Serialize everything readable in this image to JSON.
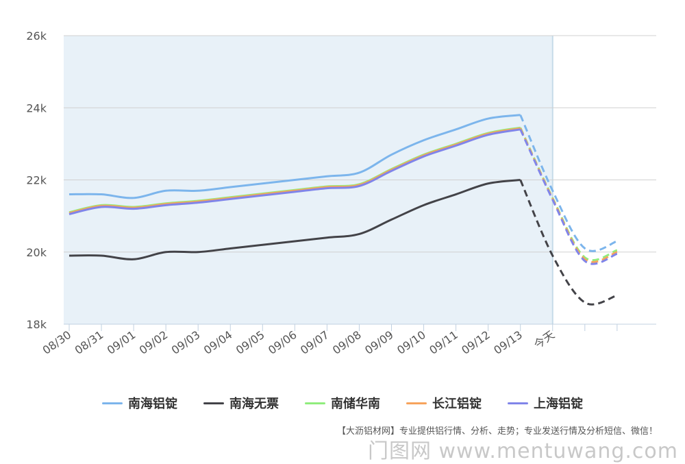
{
  "chart_data": {
    "type": "line",
    "categories": [
      "08/30",
      "08/31",
      "09/01",
      "09/02",
      "09/03",
      "09/04",
      "09/05",
      "09/06",
      "09/07",
      "09/08",
      "09/09",
      "09/10",
      "09/11",
      "09/12",
      "09/13",
      "今天",
      "",
      ""
    ],
    "y_ticks": [
      "18k",
      "20k",
      "22k",
      "24k",
      "26k"
    ],
    "ylim": [
      18000,
      26000
    ],
    "grid": true,
    "legend_position": "bottom",
    "forecast_from_index": 14,
    "series": [
      {
        "name": "南海铝锭",
        "color": "#7cb5ec",
        "values": [
          21600,
          21600,
          21500,
          21700,
          21700,
          21800,
          21900,
          22000,
          22100,
          22200,
          22700,
          23100,
          23400,
          23700,
          23800,
          21700,
          20100,
          20300
        ]
      },
      {
        "name": "南海无票",
        "color": "#434348",
        "values": [
          19900,
          19900,
          19800,
          20000,
          20000,
          20100,
          20200,
          20300,
          20400,
          20500,
          20900,
          21300,
          21600,
          21900,
          22000,
          19900,
          18600,
          18800
        ]
      },
      {
        "name": "南储华南",
        "color": "#90ed7d",
        "values": [
          21100,
          21300,
          21250,
          21350,
          21420,
          21520,
          21620,
          21720,
          21820,
          21880,
          22300,
          22700,
          23000,
          23300,
          23450,
          21500,
          19850,
          20050
        ]
      },
      {
        "name": "长江铝锭",
        "color": "#f7a35c",
        "values": [
          21080,
          21280,
          21230,
          21330,
          21400,
          21500,
          21600,
          21700,
          21800,
          21860,
          22280,
          22680,
          22980,
          23280,
          23430,
          21480,
          19800,
          20000
        ]
      },
      {
        "name": "上海铝锭",
        "color": "#8085e9",
        "values": [
          21050,
          21250,
          21200,
          21300,
          21370,
          21470,
          21570,
          21670,
          21770,
          21830,
          22250,
          22650,
          22950,
          23250,
          23400,
          21450,
          19750,
          19950
        ]
      }
    ]
  },
  "footer_text": "【大沥铝材网】专业提供铝行情、分析、走势；专业发送行情及分析短信、微信！",
  "watermark_text": "门图网  www.mentuwang.com"
}
